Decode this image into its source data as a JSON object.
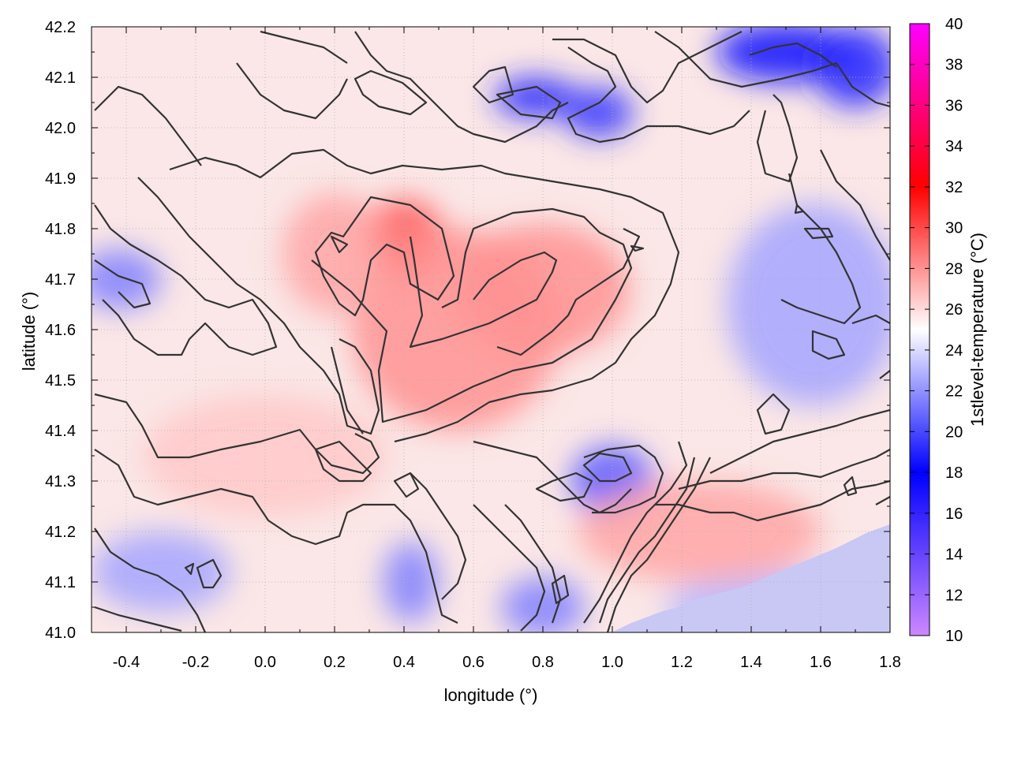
{
  "chart_data": {
    "type": "heatmap",
    "title": "",
    "xlabel": "longitude (°)",
    "ylabel": "latitude (°)",
    "colorbar_label": "1stlevel-temperature (°C)",
    "xlim": [
      -0.5,
      1.8
    ],
    "ylim": [
      41.0,
      42.2
    ],
    "xticks": [
      -0.4,
      -0.2,
      0.0,
      0.2,
      0.4,
      0.6,
      0.8,
      1.0,
      1.2,
      1.4,
      1.6,
      1.8
    ],
    "xtick_labels": [
      "-0.4",
      "-0.2",
      "0.0",
      "0.2",
      "0.4",
      "0.6",
      "0.8",
      "1.0",
      "1.2",
      "1.4",
      "1.6",
      "1.8"
    ],
    "yticks": [
      41.0,
      41.1,
      41.2,
      41.3,
      41.4,
      41.5,
      41.6,
      41.7,
      41.8,
      41.9,
      42.0,
      42.1,
      42.2
    ],
    "ytick_labels": [
      "41.0",
      "41.1",
      "41.2",
      "41.3",
      "41.4",
      "41.5",
      "41.6",
      "41.7",
      "41.8",
      "41.9",
      "42.0",
      "42.1",
      "42.2"
    ],
    "colorbar_range": [
      10,
      40
    ],
    "colorbar_ticks": [
      10,
      12,
      14,
      16,
      18,
      20,
      22,
      24,
      26,
      28,
      30,
      32,
      34,
      36,
      38,
      40
    ],
    "colorbar_tick_labels": [
      "10",
      "12",
      "14",
      "16",
      "18",
      "20",
      "22",
      "24",
      "26",
      "28",
      "30",
      "32",
      "34",
      "36",
      "38",
      "40"
    ],
    "colorscale": [
      {
        "value": 10,
        "color": "#cc88ff"
      },
      {
        "value": 18,
        "color": "#0000ff"
      },
      {
        "value": 25,
        "color": "#ffffff"
      },
      {
        "value": 32,
        "color": "#ff0000"
      },
      {
        "value": 40,
        "color": "#ff00ff"
      }
    ],
    "grid": true,
    "contour_color": "#333333",
    "warm_regions": [
      {
        "lon": 0.4,
        "lat": 41.78,
        "rx": 0.12,
        "ry": 0.08,
        "temp": 29.5
      },
      {
        "lon": 0.55,
        "lat": 41.6,
        "rx": 0.3,
        "ry": 0.2,
        "temp": 28.0
      },
      {
        "lon": 0.8,
        "lat": 41.68,
        "rx": 0.25,
        "ry": 0.13,
        "temp": 28.0
      },
      {
        "lon": 0.2,
        "lat": 41.75,
        "rx": 0.15,
        "ry": 0.12,
        "temp": 27.5
      },
      {
        "lon": 1.25,
        "lat": 41.2,
        "rx": 0.35,
        "ry": 0.1,
        "temp": 27.5
      },
      {
        "lon": 0.0,
        "lat": 41.35,
        "rx": 0.35,
        "ry": 0.12,
        "temp": 26.5
      }
    ],
    "cool_regions": [
      {
        "lon": 1.5,
        "lat": 42.15,
        "rx": 0.2,
        "ry": 0.06,
        "temp": 17.5
      },
      {
        "lon": 1.7,
        "lat": 42.12,
        "rx": 0.12,
        "ry": 0.08,
        "temp": 19.0
      },
      {
        "lon": 0.78,
        "lat": 42.06,
        "rx": 0.12,
        "ry": 0.04,
        "temp": 19.0
      },
      {
        "lon": 0.96,
        "lat": 42.03,
        "rx": 0.1,
        "ry": 0.05,
        "temp": 19.5
      },
      {
        "lon": 1.0,
        "lat": 41.3,
        "rx": 0.12,
        "ry": 0.07,
        "temp": 20.5
      },
      {
        "lon": 1.58,
        "lat": 41.65,
        "rx": 0.25,
        "ry": 0.2,
        "temp": 22.5
      },
      {
        "lon": -0.42,
        "lat": 41.7,
        "rx": 0.12,
        "ry": 0.06,
        "temp": 21.5
      },
      {
        "lon": 0.42,
        "lat": 41.1,
        "rx": 0.08,
        "ry": 0.08,
        "temp": 21.5
      },
      {
        "lon": -0.3,
        "lat": 41.12,
        "rx": 0.2,
        "ry": 0.08,
        "temp": 22.5
      },
      {
        "lon": 1.5,
        "lat": 41.05,
        "rx": 0.35,
        "ry": 0.07,
        "temp": 23.0
      },
      {
        "lon": 0.8,
        "lat": 41.05,
        "rx": 0.12,
        "ry": 0.06,
        "temp": 21.5
      }
    ]
  }
}
